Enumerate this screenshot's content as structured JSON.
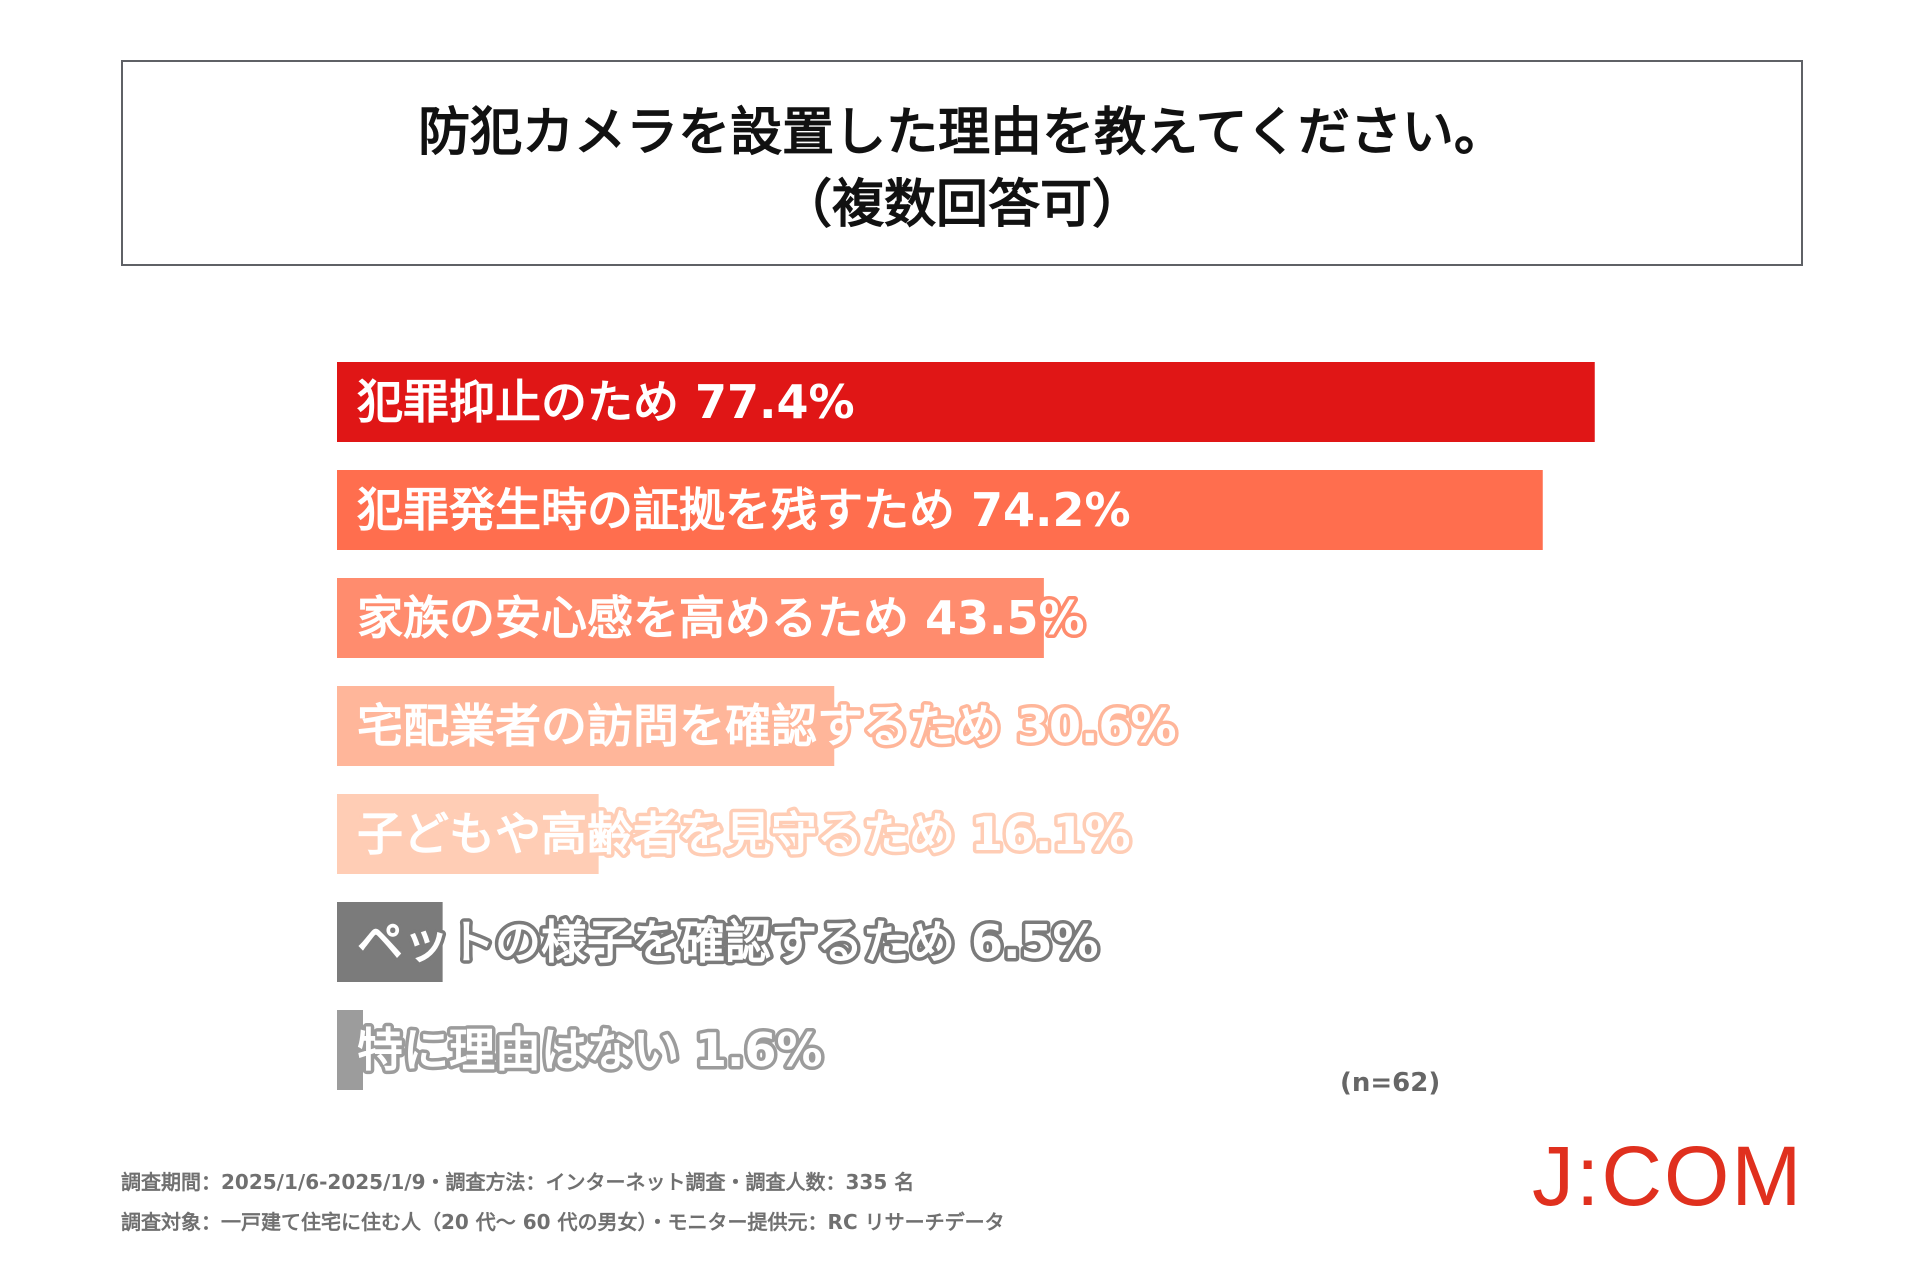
{
  "title": {
    "line1": "防犯カメラを設置した理由を教えてください。",
    "line2": "（複数回答可）"
  },
  "chart_data": {
    "type": "bar",
    "orientation": "horizontal",
    "title": "防犯カメラを設置した理由を教えてください。（複数回答可）",
    "categories": [
      "犯罪抑止のため",
      "犯罪発生時の証拠を残すため",
      "家族の安心感を高めるため",
      "宅配業者の訪問を確認するため",
      "子どもや高齢者を見守るため",
      "ペットの様子を確認するため",
      "特に理由はない"
    ],
    "values": [
      77.4,
      74.2,
      43.5,
      30.6,
      16.1,
      6.5,
      1.6
    ],
    "value_labels": [
      "77.4%",
      "74.2%",
      "43.5%",
      "30.6%",
      "16.1%",
      "6.5%",
      "1.6%"
    ],
    "colors": [
      "#e01616",
      "#ff6e4e",
      "#ff8c6e",
      "#ffb69a",
      "#ffcdb5",
      "#7b7b7b",
      "#9c9c9c"
    ],
    "outline_colors": [
      "none",
      "none",
      "#ff8c6e",
      "#ffb69a",
      "#ffcdb5",
      "#7b7b7b",
      "#9c9c9c"
    ],
    "label_fill": "#ffffff",
    "xlim": [
      0,
      100
    ],
    "grid": false,
    "legend": false,
    "sample_note": "(n=62)"
  },
  "footnotes": {
    "line1": "調査期間：2025/1/6-2025/1/9・調査方法：インターネット調査・調査人数：335 名",
    "line2": "調査対象：一戸建て住宅に住む人（20 代～ 60 代の男女）・モニター提供元：RC リサーチデータ"
  },
  "brand": {
    "logo_text": "J:COM",
    "color": "#e0301e"
  }
}
